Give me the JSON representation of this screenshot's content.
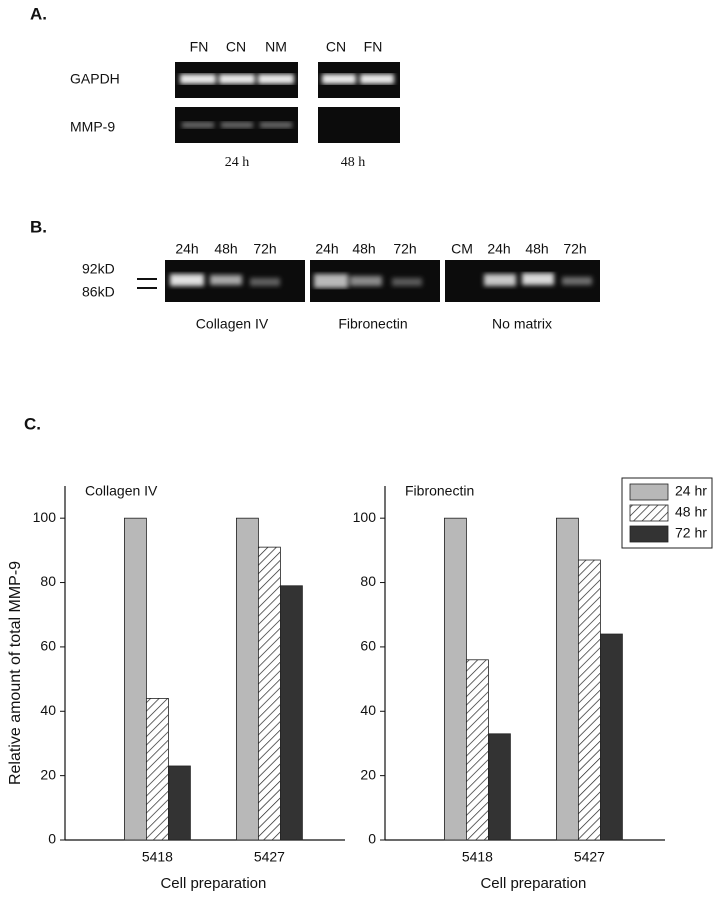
{
  "panel_a": {
    "label": "A.",
    "lanes_left": [
      "FN",
      "CN",
      "NM"
    ],
    "lanes_right": [
      "CN",
      "FN"
    ],
    "rows": [
      "GAPDH",
      "MMP-9"
    ],
    "times": [
      "24 h",
      "48 h"
    ]
  },
  "panel_b": {
    "label": "B.",
    "markers": [
      "92kD",
      "86kD"
    ],
    "groups": [
      {
        "name": "Collagen IV",
        "lanes": [
          "24h",
          "48h",
          "72h"
        ]
      },
      {
        "name": "Fibronectin",
        "lanes": [
          "24h",
          "48h",
          "72h"
        ]
      },
      {
        "name": "No matrix",
        "lanes": [
          "CM",
          "24h",
          "48h",
          "72h"
        ]
      }
    ]
  },
  "panel_c": {
    "label": "C."
  },
  "chart_data": [
    {
      "type": "bar",
      "title": "Collagen IV",
      "y_label": "Relative amount of total MMP-9",
      "x_label": "Cell preparation",
      "categories": [
        "5418",
        "5427"
      ],
      "series": [
        {
          "name": "24 hr",
          "color": "#b8b8b8",
          "values": [
            100,
            100
          ]
        },
        {
          "name": "48 hr",
          "color": "#ffffff",
          "hatch": true,
          "values": [
            44,
            91
          ]
        },
        {
          "name": "72 hr",
          "color": "#333333",
          "values": [
            23,
            79
          ]
        }
      ],
      "ylim": [
        0,
        110
      ],
      "yticks": [
        0,
        20,
        40,
        60,
        80,
        100
      ],
      "legend": false
    },
    {
      "type": "bar",
      "title": "Fibronectin",
      "x_label": "Cell preparation",
      "categories": [
        "5418",
        "5427"
      ],
      "series": [
        {
          "name": "24 hr",
          "color": "#b8b8b8",
          "values": [
            100,
            100
          ]
        },
        {
          "name": "48 hr",
          "color": "#ffffff",
          "hatch": true,
          "values": [
            56,
            87
          ]
        },
        {
          "name": "72 hr",
          "color": "#333333",
          "values": [
            33,
            64
          ]
        }
      ],
      "ylim": [
        0,
        110
      ],
      "yticks": [
        0,
        20,
        40,
        60,
        80,
        100
      ],
      "legend": "upper right"
    }
  ]
}
